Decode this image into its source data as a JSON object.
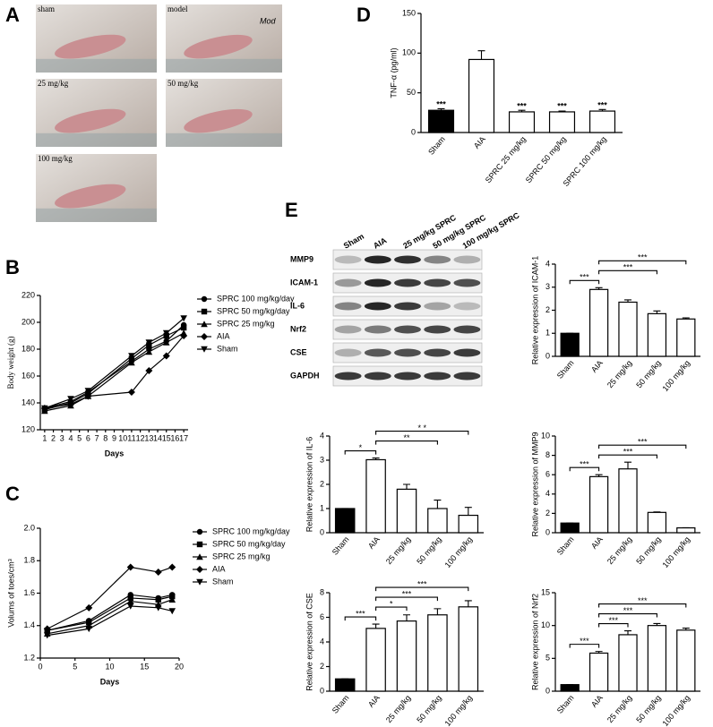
{
  "figure": {
    "panel_labels": [
      "A",
      "B",
      "C",
      "D",
      "E"
    ],
    "photos": [
      "sham",
      "model",
      "25 mg/kg",
      "50 mg/kg",
      "100 mg/kg"
    ],
    "photo_note": "Mod",
    "blot": {
      "lanes": [
        "Sham",
        "AIA",
        "25 mg/kg SPRC",
        "50 mg/kg SPRC",
        "100 mg/kg SPRC"
      ],
      "rows": [
        "MMP9",
        "ICAM-1",
        "IL-6",
        "Nrf2",
        "CSE",
        "GAPDH"
      ]
    }
  },
  "chart_data": [
    {
      "type": "line",
      "xlabel": "Days",
      "ylabel": "Body weight (g)",
      "x": [
        1,
        4,
        6,
        11,
        13,
        15,
        17
      ],
      "xlim": [
        0.5,
        17.5
      ],
      "xticks": [
        1,
        2,
        3,
        4,
        5,
        6,
        7,
        8,
        9,
        10,
        11,
        12,
        13,
        14,
        15,
        16,
        17
      ],
      "ylim": [
        120,
        220
      ],
      "yticks": [
        120,
        140,
        160,
        180,
        200,
        220
      ],
      "series": [
        {
          "name": "SPRC 100 mg/kg/day",
          "color": "#000000",
          "marker": "circle",
          "values": [
            136,
            141,
            148,
            171,
            180,
            186,
            198
          ]
        },
        {
          "name": "SPRC 50 mg/kg/day",
          "color": "#000000",
          "marker": "square",
          "values": [
            135,
            140,
            147,
            173,
            183,
            190,
            196
          ]
        },
        {
          "name": "SPRC 25 mg/kg",
          "color": "#000000",
          "marker": "triangle-up",
          "values": [
            134,
            138,
            145,
            170,
            178,
            185,
            192
          ]
        },
        {
          "name": "AIA",
          "color": "#000000",
          "marker": "diamond",
          "values": [
            136,
            139,
            145,
            148,
            164,
            175,
            190
          ]
        },
        {
          "name": "Sham",
          "color": "#000000",
          "marker": "triangle-down",
          "values": [
            136,
            143,
            149,
            175,
            185,
            192,
            203
          ]
        }
      ]
    },
    {
      "type": "line",
      "xlabel": "Days",
      "ylabel": "Volums of toes/cm³",
      "x": [
        1,
        7,
        13,
        17,
        19
      ],
      "xlim": [
        0,
        20
      ],
      "xticks": [
        0,
        5,
        10,
        15,
        20
      ],
      "ylim": [
        1.2,
        2
      ],
      "yticks": [
        1.2,
        1.4,
        1.6,
        1.8,
        {
          "value": 2,
          "label": "2.0"
        }
      ],
      "series": [
        {
          "name": "SPRC 100 mg/kg/day",
          "color": "#000000",
          "marker": "circle",
          "values": [
            1.37,
            1.43,
            1.59,
            1.57,
            1.59
          ]
        },
        {
          "name": "SPRC 50 mg/kg/day",
          "color": "#000000",
          "marker": "square",
          "values": [
            1.37,
            1.42,
            1.57,
            1.56,
            1.58
          ]
        },
        {
          "name": "SPRC 25 mg/kg",
          "color": "#000000",
          "marker": "triangle-up",
          "values": [
            1.35,
            1.4,
            1.55,
            1.53,
            1.56
          ]
        },
        {
          "name": "AIA",
          "color": "#000000",
          "marker": "diamond",
          "values": [
            1.38,
            1.51,
            1.76,
            1.73,
            1.76
          ]
        },
        {
          "name": "Sham",
          "color": "#000000",
          "marker": "triangle-down",
          "values": [
            1.34,
            1.38,
            1.52,
            1.51,
            1.49
          ]
        }
      ]
    },
    {
      "type": "bar",
      "ylabel": "TNF-α (pg/ml)",
      "categories": [
        "Sham",
        "AIA",
        "SPRC 25 mg/kg",
        "SPRC 50 mg/kg",
        "SPRC 100 mg/kg"
      ],
      "values": [
        28,
        92,
        26,
        26,
        27
      ],
      "errors": [
        2,
        11,
        2,
        1,
        2
      ],
      "colors": [
        "#000000",
        "#ffffff",
        "#ffffff",
        "#ffffff",
        "#ffffff"
      ],
      "ylim": [
        0,
        150
      ],
      "yticks": [
        0,
        50,
        100,
        150
      ],
      "significance": [
        "***",
        null,
        "***",
        "***",
        "***"
      ]
    },
    {
      "type": "bar",
      "ylabel": "Relative expression of ICAM-1",
      "categories": [
        "Sham",
        "AIA",
        "25 mg/kg",
        "50 mg/kg",
        "100 mg/kg"
      ],
      "values": [
        1,
        2.9,
        2.35,
        1.85,
        1.62
      ],
      "errors": [
        0,
        0.08,
        0.1,
        0.12,
        0.05
      ],
      "colors": [
        "#000000",
        "#ffffff",
        "#ffffff",
        "#ffffff",
        "#ffffff"
      ],
      "ylim": [
        0,
        4
      ],
      "yticks": [
        0,
        1,
        2,
        3,
        4
      ],
      "comparisons": [
        {
          "from": 0,
          "to": 1,
          "label": "***"
        },
        {
          "from": 1,
          "to": 3,
          "label": "***"
        },
        {
          "from": 1,
          "to": 4,
          "label": "***"
        }
      ]
    },
    {
      "type": "bar",
      "ylabel": "Relative expression of IL-6",
      "categories": [
        "Sham",
        "AIA",
        "25 mg/kg",
        "50 mg/kg",
        "100 mg/kg"
      ],
      "values": [
        1,
        3.02,
        1.8,
        1,
        0.72
      ],
      "errors": [
        0,
        0.07,
        0.2,
        0.35,
        0.33
      ],
      "colors": [
        "#000000",
        "#ffffff",
        "#ffffff",
        "#ffffff",
        "#ffffff"
      ],
      "ylim": [
        0,
        4
      ],
      "yticks": [
        0,
        1,
        2,
        3,
        4
      ],
      "comparisons": [
        {
          "from": 0,
          "to": 1,
          "label": "*"
        },
        {
          "from": 1,
          "to": 3,
          "label": "**"
        },
        {
          "from": 1,
          "to": 4,
          "label": "* *"
        }
      ]
    },
    {
      "type": "bar",
      "ylabel": "Relative expression of MMP9",
      "categories": [
        "Sham",
        "AIA",
        "25 mg/kg",
        "50 mg/kg",
        "100 mg/kg"
      ],
      "values": [
        1,
        5.8,
        6.6,
        2.1,
        0.5
      ],
      "errors": [
        0,
        0.2,
        0.7,
        0.05,
        0.02
      ],
      "colors": [
        "#000000",
        "#ffffff",
        "#ffffff",
        "#ffffff",
        "#ffffff"
      ],
      "ylim": [
        0,
        10
      ],
      "yticks": [
        0,
        2,
        4,
        6,
        8,
        10
      ],
      "comparisons": [
        {
          "from": 0,
          "to": 1,
          "label": "***"
        },
        {
          "from": 1,
          "to": 3,
          "label": "***"
        },
        {
          "from": 1,
          "to": 4,
          "label": "***"
        }
      ]
    },
    {
      "type": "bar",
      "ylabel": "Relative expression of CSE",
      "categories": [
        "Sham",
        "AIA",
        "25 mg/kg",
        "50 mg/kg",
        "100 mg/kg"
      ],
      "values": [
        1,
        5.1,
        5.7,
        6.2,
        6.85
      ],
      "errors": [
        0,
        0.35,
        0.5,
        0.5,
        0.5
      ],
      "colors": [
        "#000000",
        "#ffffff",
        "#ffffff",
        "#ffffff",
        "#ffffff"
      ],
      "ylim": [
        0,
        8
      ],
      "yticks": [
        0,
        2,
        4,
        6,
        8
      ],
      "comparisons": [
        {
          "from": 0,
          "to": 1,
          "label": "***"
        },
        {
          "from": 1,
          "to": 2,
          "label": "*"
        },
        {
          "from": 1,
          "to": 3,
          "label": "***"
        },
        {
          "from": 1,
          "to": 4,
          "label": "***"
        }
      ]
    },
    {
      "type": "bar",
      "ylabel": "Relative expression of Nrf2",
      "categories": [
        "Sham",
        "AIA",
        "25 mg/kg",
        "50 mg/kg",
        "100 mg/kg"
      ],
      "values": [
        1,
        5.8,
        8.6,
        10,
        9.3
      ],
      "errors": [
        0,
        0.25,
        0.6,
        0.3,
        0.3
      ],
      "colors": [
        "#000000",
        "#ffffff",
        "#ffffff",
        "#ffffff",
        "#ffffff"
      ],
      "ylim": [
        0,
        15
      ],
      "yticks": [
        0,
        5,
        10,
        15
      ],
      "comparisons": [
        {
          "from": 0,
          "to": 1,
          "label": "***"
        },
        {
          "from": 1,
          "to": 2,
          "label": "***"
        },
        {
          "from": 1,
          "to": 3,
          "label": "***"
        },
        {
          "from": 1,
          "to": 4,
          "label": "***"
        }
      ]
    }
  ]
}
